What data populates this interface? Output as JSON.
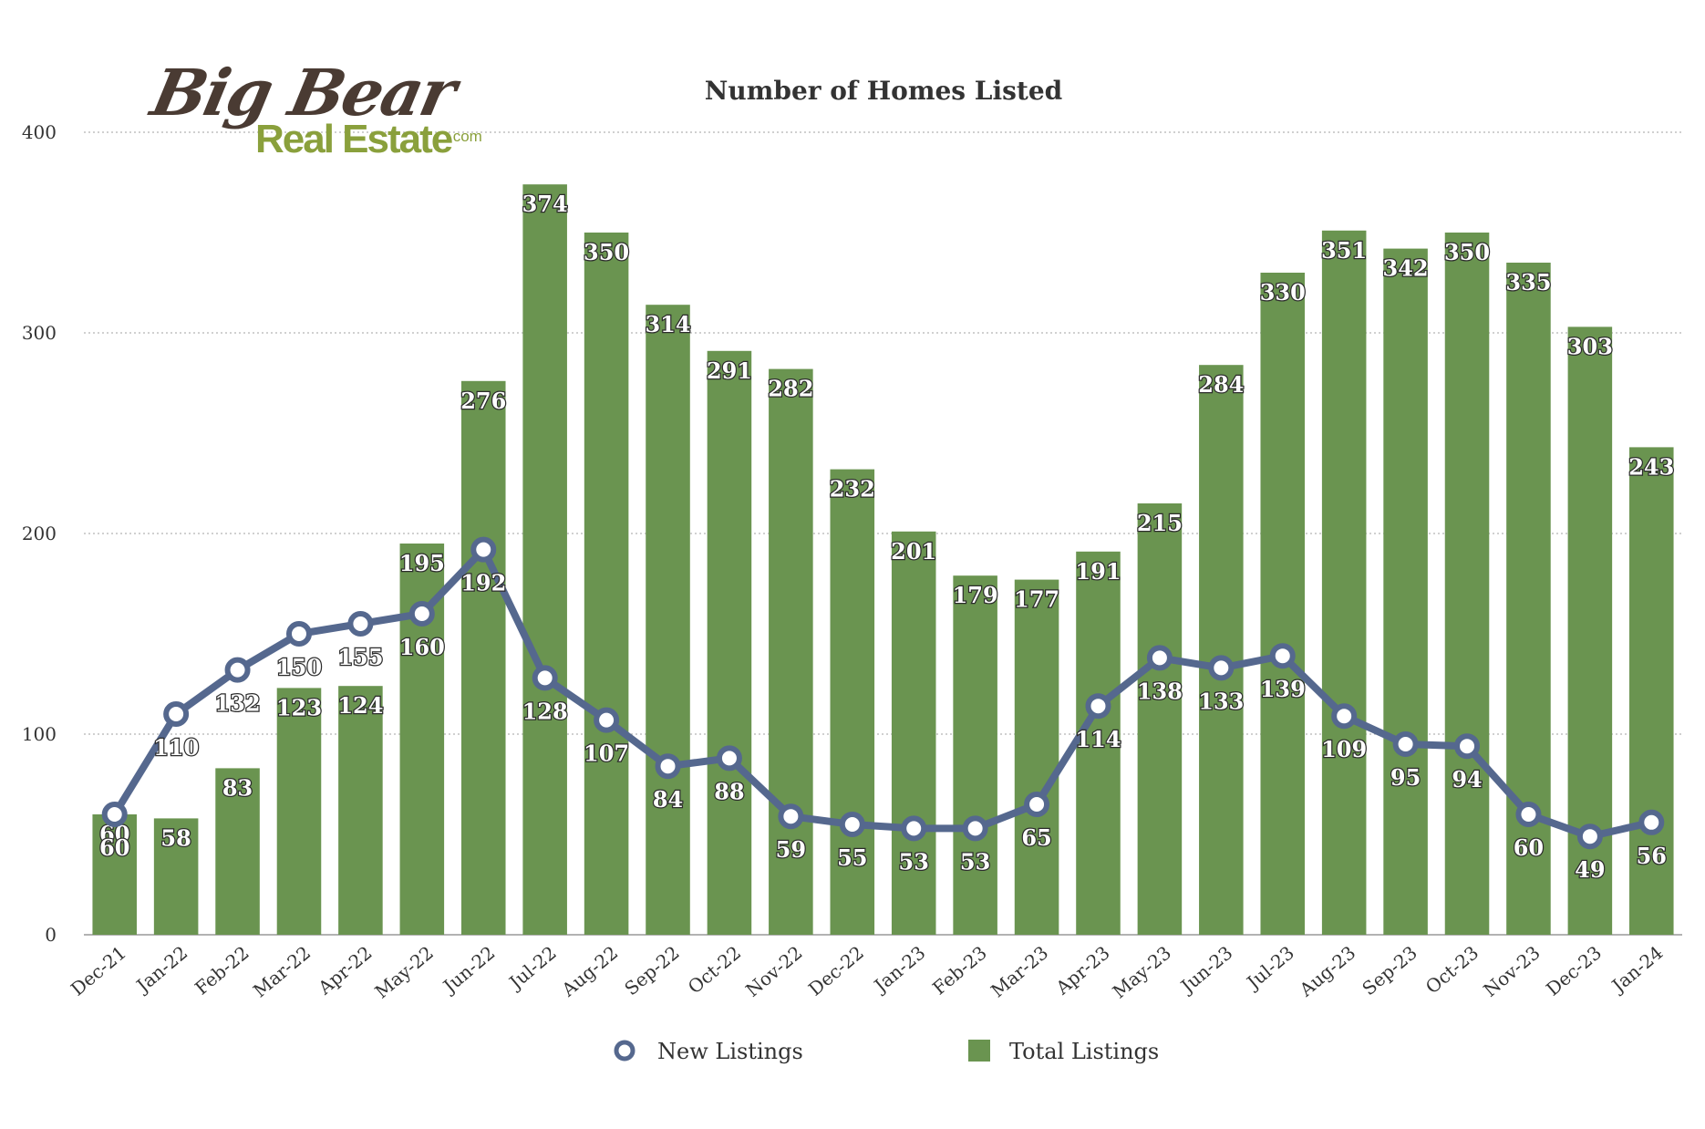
{
  "logo": {
    "line1": "Big Bear",
    "line2": "Real Estate",
    "suffix": ".com"
  },
  "colors": {
    "bars": "#6a9450",
    "line": "#55688e",
    "marker_fill": "#ffffff",
    "grid": "#b5b5b5",
    "text": "#333333"
  },
  "chart_data": {
    "type": "bar",
    "title": "Number of Homes Listed",
    "xlabel": "",
    "ylabel": "",
    "ylim": [
      0,
      400
    ],
    "yticks": [
      0,
      100,
      200,
      300,
      400
    ],
    "grid": true,
    "legend": "bottom",
    "categories": [
      "Dec-21",
      "Jan-22",
      "Feb-22",
      "Mar-22",
      "Apr-22",
      "May-22",
      "Jun-22",
      "Jul-22",
      "Aug-22",
      "Sep-22",
      "Oct-22",
      "Nov-22",
      "Dec-22",
      "Jan-23",
      "Feb-23",
      "Mar-23",
      "Apr-23",
      "May-23",
      "Jun-23",
      "Jul-23",
      "Aug-23",
      "Sep-23",
      "Oct-23",
      "Nov-23",
      "Dec-23",
      "Jan-24"
    ],
    "series": [
      {
        "name": "New Listings",
        "type": "line",
        "values": [
          60,
          110,
          132,
          150,
          155,
          160,
          192,
          128,
          107,
          84,
          88,
          59,
          55,
          53,
          53,
          65,
          114,
          138,
          133,
          139,
          109,
          95,
          94,
          60,
          49,
          56
        ]
      },
      {
        "name": "Total Listings",
        "type": "bar",
        "values": [
          60,
          58,
          83,
          123,
          124,
          195,
          276,
          374,
          350,
          314,
          291,
          282,
          232,
          201,
          179,
          177,
          191,
          215,
          284,
          330,
          351,
          342,
          350,
          335,
          303,
          243
        ]
      }
    ]
  }
}
